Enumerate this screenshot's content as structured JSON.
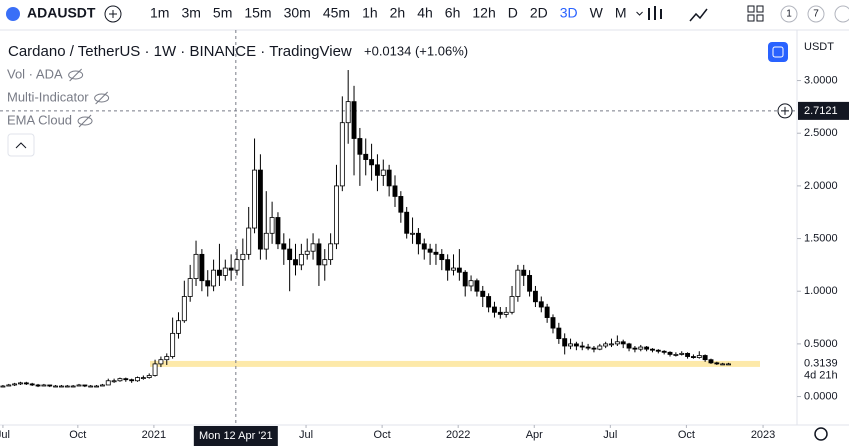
{
  "toolbar": {
    "symbol": "ADAUSDT",
    "intervals": [
      "1m",
      "3m",
      "5m",
      "15m",
      "30m",
      "45m",
      "1h",
      "2h",
      "4h",
      "6h",
      "12h",
      "D",
      "2D",
      "3D",
      "W",
      "M"
    ],
    "right_buttons": [
      "1",
      "7"
    ]
  },
  "chart_data": {
    "type": "candlestick",
    "title": "Cardano / TetherUS · 1W · BINANCE · TradingView",
    "change": "+0.0134 (+1.06%)",
    "indicators": [
      "Vol · ADA",
      "Multi-Indicator",
      "EMA Cloud"
    ],
    "currency": "USDT",
    "up_color": "#ffffff",
    "down_color": "#000000",
    "wick_color": "#000000",
    "highlight_level": 0.31,
    "highlight_color": "#fde9a9",
    "last_price": 0.3139,
    "countdown": "4d 21h",
    "crosshair_price": 2.7121,
    "crosshair_x": {
      "value": 39.8,
      "label": "Mon 12 Apr '21"
    },
    "xlim": [
      -0.5,
      135.7
    ],
    "xticks": [
      {
        "value": 0,
        "label": "Jul"
      },
      {
        "value": 12.8,
        "label": "Oct"
      },
      {
        "value": 25.8,
        "label": "2021"
      },
      {
        "value": 51.8,
        "label": "Jul"
      },
      {
        "value": 64.8,
        "label": "Oct"
      },
      {
        "value": 77.8,
        "label": "2022"
      },
      {
        "value": 90.8,
        "label": "Apr"
      },
      {
        "value": 103.8,
        "label": "Jul"
      },
      {
        "value": 116.8,
        "label": "Oct"
      },
      {
        "value": 129.9,
        "label": "2023"
      }
    ],
    "ylim": [
      -0.27,
      3.48
    ],
    "yticks": [
      {
        "value": 0,
        "label": "0.0000"
      },
      {
        "value": 0.5,
        "label": "0.5000"
      },
      {
        "value": 1,
        "label": "1.0000"
      },
      {
        "value": 1.5,
        "label": "1.5000"
      },
      {
        "value": 2,
        "label": "2.0000"
      },
      {
        "value": 2.5,
        "label": "2.5000"
      },
      {
        "value": 3,
        "label": "3.0000"
      }
    ],
    "candles": [
      [
        0.1,
        0.11,
        0.09,
        0.1
      ],
      [
        0.1,
        0.12,
        0.1,
        0.11
      ],
      [
        0.11,
        0.13,
        0.1,
        0.12
      ],
      [
        0.12,
        0.14,
        0.11,
        0.13
      ],
      [
        0.13,
        0.14,
        0.11,
        0.12
      ],
      [
        0.12,
        0.13,
        0.1,
        0.11
      ],
      [
        0.11,
        0.12,
        0.09,
        0.1
      ],
      [
        0.1,
        0.12,
        0.1,
        0.11
      ],
      [
        0.11,
        0.11,
        0.09,
        0.1
      ],
      [
        0.1,
        0.11,
        0.09,
        0.1
      ],
      [
        0.1,
        0.11,
        0.09,
        0.1
      ],
      [
        0.1,
        0.11,
        0.09,
        0.1
      ],
      [
        0.1,
        0.11,
        0.09,
        0.1
      ],
      [
        0.1,
        0.12,
        0.1,
        0.11
      ],
      [
        0.11,
        0.11,
        0.09,
        0.1
      ],
      [
        0.1,
        0.11,
        0.09,
        0.1
      ],
      [
        0.1,
        0.11,
        0.09,
        0.1
      ],
      [
        0.1,
        0.12,
        0.1,
        0.11
      ],
      [
        0.11,
        0.17,
        0.11,
        0.15
      ],
      [
        0.15,
        0.17,
        0.13,
        0.15
      ],
      [
        0.15,
        0.18,
        0.14,
        0.17
      ],
      [
        0.17,
        0.18,
        0.14,
        0.16
      ],
      [
        0.16,
        0.17,
        0.13,
        0.15
      ],
      [
        0.15,
        0.19,
        0.14,
        0.18
      ],
      [
        0.18,
        0.2,
        0.16,
        0.18
      ],
      [
        0.18,
        0.22,
        0.17,
        0.2
      ],
      [
        0.2,
        0.35,
        0.19,
        0.31
      ],
      [
        0.31,
        0.38,
        0.28,
        0.35
      ],
      [
        0.35,
        0.41,
        0.3,
        0.38
      ],
      [
        0.38,
        0.75,
        0.36,
        0.6
      ],
      [
        0.6,
        0.8,
        0.55,
        0.72
      ],
      [
        0.72,
        1.1,
        0.7,
        0.95
      ],
      [
        0.95,
        1.25,
        0.9,
        1.12
      ],
      [
        1.12,
        1.48,
        1.05,
        1.35
      ],
      [
        1.35,
        1.4,
        1.0,
        1.1
      ],
      [
        1.1,
        1.2,
        0.95,
        1.05
      ],
      [
        1.05,
        1.3,
        1.0,
        1.2
      ],
      [
        1.2,
        1.45,
        1.05,
        1.15
      ],
      [
        1.15,
        1.3,
        1.1,
        1.22
      ],
      [
        1.22,
        1.35,
        1.1,
        1.2
      ],
      [
        1.2,
        1.4,
        1.15,
        1.3
      ],
      [
        1.3,
        1.5,
        1.05,
        1.35
      ],
      [
        1.35,
        1.8,
        1.3,
        1.6
      ],
      [
        1.6,
        2.45,
        1.55,
        2.15
      ],
      [
        2.15,
        2.3,
        1.3,
        1.4
      ],
      [
        1.4,
        1.95,
        1.3,
        1.55
      ],
      [
        1.55,
        1.85,
        1.45,
        1.7
      ],
      [
        1.7,
        1.75,
        1.4,
        1.45
      ],
      [
        1.45,
        1.55,
        1.25,
        1.4
      ],
      [
        1.4,
        1.5,
        1.0,
        1.3
      ],
      [
        1.3,
        1.45,
        1.15,
        1.25
      ],
      [
        1.25,
        1.45,
        1.2,
        1.35
      ],
      [
        1.35,
        1.5,
        1.3,
        1.38
      ],
      [
        1.38,
        1.55,
        1.3,
        1.45
      ],
      [
        1.45,
        1.5,
        1.05,
        1.25
      ],
      [
        1.25,
        1.4,
        1.1,
        1.3
      ],
      [
        1.3,
        1.55,
        1.25,
        1.45
      ],
      [
        1.45,
        2.2,
        1.4,
        2.0
      ],
      [
        2.0,
        2.85,
        1.95,
        2.6
      ],
      [
        2.6,
        3.1,
        2.4,
        2.8
      ],
      [
        2.8,
        2.95,
        2.1,
        2.45
      ],
      [
        2.45,
        2.55,
        2.0,
        2.3
      ],
      [
        2.3,
        2.45,
        2.1,
        2.25
      ],
      [
        2.25,
        2.4,
        2.05,
        2.2
      ],
      [
        2.2,
        2.3,
        1.95,
        2.1
      ],
      [
        2.1,
        2.25,
        2.0,
        2.15
      ],
      [
        2.15,
        2.2,
        1.9,
        2.0
      ],
      [
        2.0,
        2.1,
        1.8,
        1.9
      ],
      [
        1.9,
        1.95,
        1.65,
        1.75
      ],
      [
        1.75,
        1.8,
        1.5,
        1.55
      ],
      [
        1.55,
        1.7,
        1.45,
        1.55
      ],
      [
        1.55,
        1.6,
        1.35,
        1.45
      ],
      [
        1.45,
        1.5,
        1.3,
        1.4
      ],
      [
        1.4,
        1.45,
        1.25,
        1.37
      ],
      [
        1.37,
        1.45,
        1.25,
        1.35
      ],
      [
        1.35,
        1.4,
        1.2,
        1.3
      ],
      [
        1.3,
        1.35,
        1.1,
        1.2
      ],
      [
        1.2,
        1.35,
        1.15,
        1.22
      ],
      [
        1.22,
        1.4,
        1.1,
        1.18
      ],
      [
        1.18,
        1.2,
        0.95,
        1.05
      ],
      [
        1.05,
        1.15,
        1.0,
        1.1
      ],
      [
        1.1,
        1.12,
        0.95,
        1.0
      ],
      [
        1.0,
        1.05,
        0.85,
        0.95
      ],
      [
        0.95,
        0.98,
        0.8,
        0.85
      ],
      [
        0.85,
        0.9,
        0.75,
        0.8
      ],
      [
        0.8,
        0.85,
        0.74,
        0.78
      ],
      [
        0.78,
        0.85,
        0.75,
        0.8
      ],
      [
        0.8,
        1.05,
        0.78,
        0.95
      ],
      [
        0.95,
        1.25,
        0.9,
        1.2
      ],
      [
        1.2,
        1.25,
        1.05,
        1.15
      ],
      [
        1.15,
        1.2,
        0.95,
        1.0
      ],
      [
        1.0,
        1.05,
        0.85,
        0.9
      ],
      [
        0.9,
        0.95,
        0.8,
        0.85
      ],
      [
        0.85,
        0.88,
        0.7,
        0.75
      ],
      [
        0.75,
        0.78,
        0.6,
        0.65
      ],
      [
        0.65,
        0.7,
        0.5,
        0.55
      ],
      [
        0.55,
        0.6,
        0.4,
        0.48
      ],
      [
        0.48,
        0.55,
        0.45,
        0.5
      ],
      [
        0.5,
        0.52,
        0.44,
        0.48
      ],
      [
        0.48,
        0.52,
        0.44,
        0.47
      ],
      [
        0.47,
        0.5,
        0.44,
        0.46
      ],
      [
        0.46,
        0.48,
        0.42,
        0.45
      ],
      [
        0.45,
        0.5,
        0.44,
        0.48
      ],
      [
        0.48,
        0.52,
        0.46,
        0.5
      ],
      [
        0.5,
        0.55,
        0.47,
        0.5
      ],
      [
        0.5,
        0.58,
        0.48,
        0.52
      ],
      [
        0.52,
        0.54,
        0.46,
        0.5
      ],
      [
        0.5,
        0.51,
        0.43,
        0.46
      ],
      [
        0.46,
        0.48,
        0.42,
        0.45
      ],
      [
        0.45,
        0.49,
        0.43,
        0.47
      ],
      [
        0.47,
        0.48,
        0.43,
        0.45
      ],
      [
        0.45,
        0.46,
        0.42,
        0.44
      ],
      [
        0.44,
        0.45,
        0.41,
        0.43
      ],
      [
        0.43,
        0.44,
        0.4,
        0.42
      ],
      [
        0.42,
        0.43,
        0.38,
        0.4
      ],
      [
        0.4,
        0.42,
        0.38,
        0.4
      ],
      [
        0.4,
        0.43,
        0.39,
        0.41
      ],
      [
        0.41,
        0.42,
        0.36,
        0.38
      ],
      [
        0.38,
        0.4,
        0.36,
        0.37
      ],
      [
        0.37,
        0.43,
        0.36,
        0.39
      ],
      [
        0.39,
        0.4,
        0.33,
        0.35
      ],
      [
        0.35,
        0.36,
        0.31,
        0.32
      ],
      [
        0.32,
        0.33,
        0.3,
        0.31
      ],
      [
        0.31,
        0.32,
        0.3,
        0.31
      ],
      [
        0.31,
        0.32,
        0.3,
        0.31
      ]
    ]
  }
}
